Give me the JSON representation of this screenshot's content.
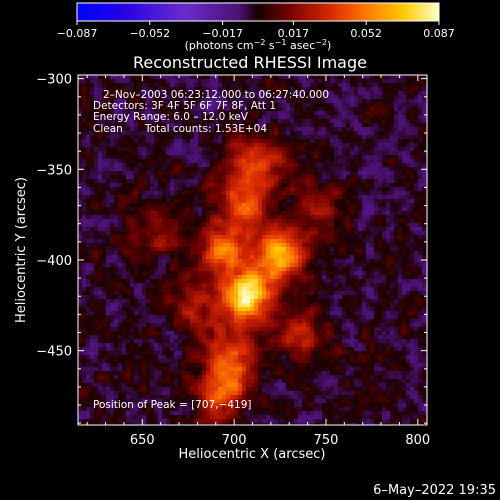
{
  "chart_data": {
    "type": "heatmap",
    "title": "Reconstructed RHESSI Image",
    "xlabel": "Heliocentric X (arcsec)",
    "ylabel": "Heliocentric Y (arcsec)",
    "xlim": [
      615,
      805
    ],
    "ylim": [
      -491,
      -298
    ],
    "x_ticks": [
      {
        "v": 650,
        "t": "650"
      },
      {
        "v": 700,
        "t": "700"
      },
      {
        "v": 750,
        "t": "750"
      },
      {
        "v": 800,
        "t": "800"
      }
    ],
    "y_ticks": [
      {
        "v": -300,
        "t": "−300"
      },
      {
        "v": -350,
        "t": "−350"
      },
      {
        "v": -400,
        "t": "−400"
      },
      {
        "v": -450,
        "t": "−450"
      }
    ],
    "colorbar": {
      "min": -0.087,
      "max": 0.087,
      "tick_values": [
        -0.087,
        -0.052,
        -0.017,
        0.017,
        0.052,
        0.087
      ],
      "tick_labels": [
        "−0.087",
        "−0.052",
        "−0.017",
        "0.017",
        "0.052",
        "0.087"
      ],
      "units_label": "(photons cm",
      "units_sup1": "−2",
      "units_mid": " s",
      "units_sup2": "−1",
      "units_mid2": " asec",
      "units_sup3": "−2",
      "units_end": ")"
    },
    "annotations": {
      "time_range": "2–Nov–2003 06:23:12.000 to 06:27:40.000",
      "detectors": "Detectors: 3F 4F 5F 6F 7F 8F, Att 1",
      "energy": "Energy Range: 6.0 – 12.0 keV",
      "clean_label": "Clean",
      "total_counts": "Total counts: 1.53E+04",
      "peak": "Position of Peak = [707,−419]"
    },
    "peak_position": [
      707,
      -419
    ],
    "emission_sources": [
      {
        "x": 707,
        "y": -419,
        "amp": 0.087,
        "sx": 9,
        "sy": 9
      },
      {
        "x": 725,
        "y": -398,
        "amp": 0.07,
        "sx": 10,
        "sy": 9
      },
      {
        "x": 693,
        "y": -395,
        "amp": 0.055,
        "sx": 8,
        "sy": 8
      },
      {
        "x": 705,
        "y": -370,
        "amp": 0.048,
        "sx": 10,
        "sy": 12
      },
      {
        "x": 712,
        "y": -345,
        "amp": 0.035,
        "sx": 12,
        "sy": 10
      },
      {
        "x": 698,
        "y": -455,
        "amp": 0.045,
        "sx": 10,
        "sy": 14
      },
      {
        "x": 690,
        "y": -475,
        "amp": 0.032,
        "sx": 9,
        "sy": 10
      },
      {
        "x": 735,
        "y": -440,
        "amp": 0.03,
        "sx": 10,
        "sy": 10
      },
      {
        "x": 680,
        "y": -425,
        "amp": 0.03,
        "sx": 9,
        "sy": 10
      },
      {
        "x": 660,
        "y": -385,
        "amp": 0.02,
        "sx": 12,
        "sy": 10
      },
      {
        "x": 745,
        "y": -370,
        "amp": 0.02,
        "sx": 10,
        "sy": 12
      }
    ]
  },
  "footer": {
    "date": "6–May–2022 19:35"
  },
  "colors": {
    "background": "#000000",
    "foreground": "#ffffff"
  }
}
